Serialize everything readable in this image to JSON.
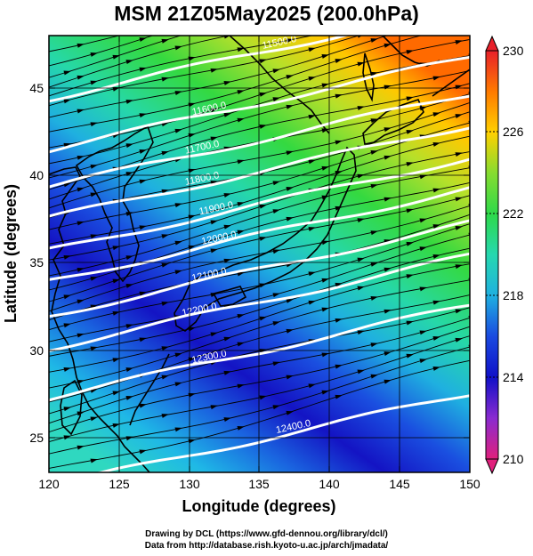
{
  "title": "MSM 21Z05May2025 (200.0hPa)",
  "x_axis": {
    "label": "Longitude (degrees)",
    "range": [
      120,
      150
    ],
    "ticks": [
      "120",
      "125",
      "130",
      "135",
      "140",
      "145",
      "150"
    ]
  },
  "y_axis": {
    "label": "Latitude  (degrees)",
    "range": [
      22.5,
      47.5
    ],
    "ticks": [
      "25",
      "30",
      "35",
      "40",
      "45"
    ]
  },
  "colorbar": {
    "range": [
      210,
      230
    ],
    "labels": [
      "230",
      "226",
      "222",
      "218",
      "214",
      "210"
    ],
    "colors": [
      "#e0207c",
      "#8a2bd0",
      "#1010c8",
      "#1a4ae0",
      "#1fb0e0",
      "#26d8b0",
      "#2ed94a",
      "#b8e02a",
      "#ffd000",
      "#ff7a00",
      "#e8202a"
    ]
  },
  "contours": [
    {
      "label": "11500.0",
      "lon": 136.5,
      "lat": 46.8
    },
    {
      "label": "11600.0",
      "lon": 131.5,
      "lat": 43.0
    },
    {
      "label": "11700.0",
      "lon": 131.0,
      "lat": 40.8
    },
    {
      "label": "11800.0",
      "lon": 131.0,
      "lat": 39.0
    },
    {
      "label": "11900.0",
      "lon": 132.0,
      "lat": 37.3
    },
    {
      "label": "12000.0",
      "lon": 132.2,
      "lat": 35.6
    },
    {
      "label": "12100.0",
      "lon": 131.5,
      "lat": 33.5
    },
    {
      "label": "12200.0",
      "lon": 130.8,
      "lat": 31.5
    },
    {
      "label": "12300.0",
      "lon": 131.5,
      "lat": 28.8
    },
    {
      "label": "12400.0",
      "lon": 137.5,
      "lat": 24.8
    }
  ],
  "credits": {
    "line1": "Drawing by DCL (https://www.gfd-dennou.org/library/dcl/)",
    "line2": "Data from http://database.rish.kyoto-u.ac.jp/arch/jmadata/"
  }
}
